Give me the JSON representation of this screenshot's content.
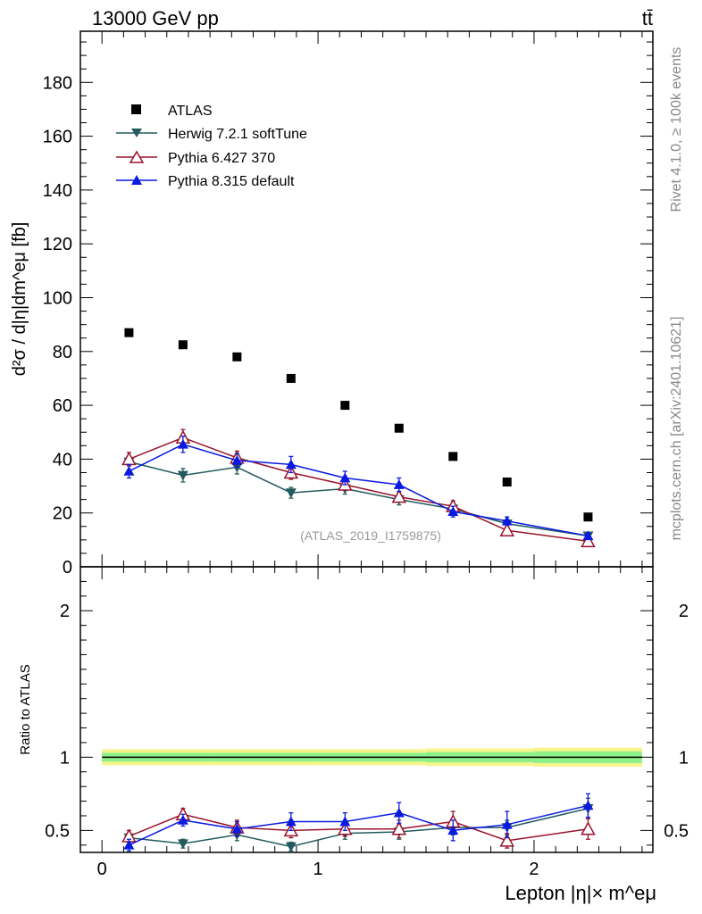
{
  "header": {
    "energy_label": "13000 GeV pp",
    "process_label": "tt̄"
  },
  "side": {
    "rivet_label": "Rivet 4.1.0, ≥ 100k events",
    "source_label": "mcplots.cern.ch [arXiv:2401.10621]"
  },
  "chart_data": [
    {
      "type": "scatter",
      "panel": "main",
      "ylabel": "d²σ / d|η|dm^eμ [fb]",
      "xlabel": "",
      "xlim": [
        -0.1,
        2.55
      ],
      "ylim": [
        0,
        199
      ],
      "y_ticks": [
        0,
        20,
        40,
        60,
        80,
        100,
        120,
        140,
        160,
        180
      ],
      "y_tick_labels": [
        "0",
        "20",
        "40",
        "60",
        "80",
        "100",
        "120",
        "140",
        "160",
        "180"
      ],
      "analysis_label": "(ATLAS_2019_I1759875)",
      "legend": [
        "ATLAS",
        "Herwig 7.2.1 softTune",
        "Pythia 6.427 370",
        "Pythia 8.315 default"
      ],
      "x": [
        0.125,
        0.375,
        0.625,
        0.875,
        1.125,
        1.375,
        1.625,
        1.875,
        2.25
      ],
      "series": [
        {
          "name": "ATLAS",
          "color": "#000000",
          "marker": "square",
          "values": [
            87,
            82.5,
            78,
            70,
            60,
            51.5,
            41,
            31.5,
            18.5
          ],
          "errors": [
            0,
            0,
            0,
            0,
            0,
            0,
            0,
            0,
            0
          ]
        },
        {
          "name": "Herwig 7.2.1 softTune",
          "color": "#225a5e",
          "marker": "triangle-down",
          "values": [
            39,
            34,
            37,
            27.5,
            29,
            25,
            21.5,
            16,
            11.5
          ],
          "errors": [
            1.5,
            2.5,
            2.5,
            2,
            2,
            2,
            1.5,
            1.2,
            1
          ]
        },
        {
          "name": "Pythia 6.427 370",
          "color": "#99142c",
          "marker": "triangle-open",
          "values": [
            40,
            48,
            40.5,
            35,
            30.5,
            26,
            22.5,
            13.5,
            9.5
          ],
          "errors": [
            2.5,
            3,
            2.5,
            2.5,
            2,
            2,
            2,
            1.2,
            1
          ]
        },
        {
          "name": "Pythia 8.315 default",
          "color": "#0a1ae0",
          "marker": "triangle",
          "values": [
            35.5,
            45.5,
            39.5,
            38,
            33,
            30.5,
            20.5,
            17,
            11.5
          ],
          "errors": [
            2.5,
            3,
            2.5,
            3,
            2.5,
            2.5,
            2,
            1.5,
            1
          ]
        }
      ]
    },
    {
      "type": "scatter",
      "panel": "ratio",
      "ylabel": "Ratio to ATLAS",
      "xlabel": "Lepton |η|× m^eμ",
      "xlim": [
        -0.1,
        2.55
      ],
      "ylim": [
        0.35,
        2.3
      ],
      "y_ticks": [
        0.5,
        1,
        2
      ],
      "y_tick_labels": [
        "0.5",
        "1",
        "2"
      ],
      "x_ticks": [
        0,
        1,
        2
      ],
      "x_tick_labels": [
        "0",
        "1",
        "2"
      ],
      "band_x": [
        0,
        0.5,
        1.0,
        1.5,
        2.0,
        2.5
      ],
      "band_inner": [
        0.03,
        0.03,
        0.03,
        0.035,
        0.04,
        0.04
      ],
      "band_outer": [
        0.055,
        0.055,
        0.055,
        0.06,
        0.065,
        0.065
      ],
      "x": [
        0.125,
        0.375,
        0.625,
        0.875,
        1.125,
        1.375,
        1.625,
        1.875,
        2.25
      ],
      "series": [
        {
          "name": "Herwig 7.2.1 softTune",
          "color": "#225a5e",
          "marker": "triangle-down",
          "values": [
            0.45,
            0.41,
            0.47,
            0.39,
            0.48,
            0.49,
            0.52,
            0.52,
            0.65
          ],
          "errors": [
            0.03,
            0.03,
            0.04,
            0.03,
            0.04,
            0.05,
            0.05,
            0.05,
            0.07
          ]
        },
        {
          "name": "Pythia 6.427 370",
          "color": "#99142c",
          "marker": "triangle-open",
          "values": [
            0.46,
            0.61,
            0.52,
            0.5,
            0.51,
            0.51,
            0.56,
            0.43,
            0.51
          ],
          "errors": [
            0.04,
            0.04,
            0.05,
            0.05,
            0.05,
            0.06,
            0.07,
            0.05,
            0.07
          ]
        },
        {
          "name": "Pythia 8.315 default",
          "color": "#0a1ae0",
          "marker": "triangle",
          "values": [
            0.4,
            0.57,
            0.51,
            0.56,
            0.56,
            0.62,
            0.5,
            0.54,
            0.67
          ],
          "errors": [
            0.04,
            0.04,
            0.05,
            0.06,
            0.06,
            0.07,
            0.07,
            0.09,
            0.08
          ]
        }
      ]
    }
  ]
}
